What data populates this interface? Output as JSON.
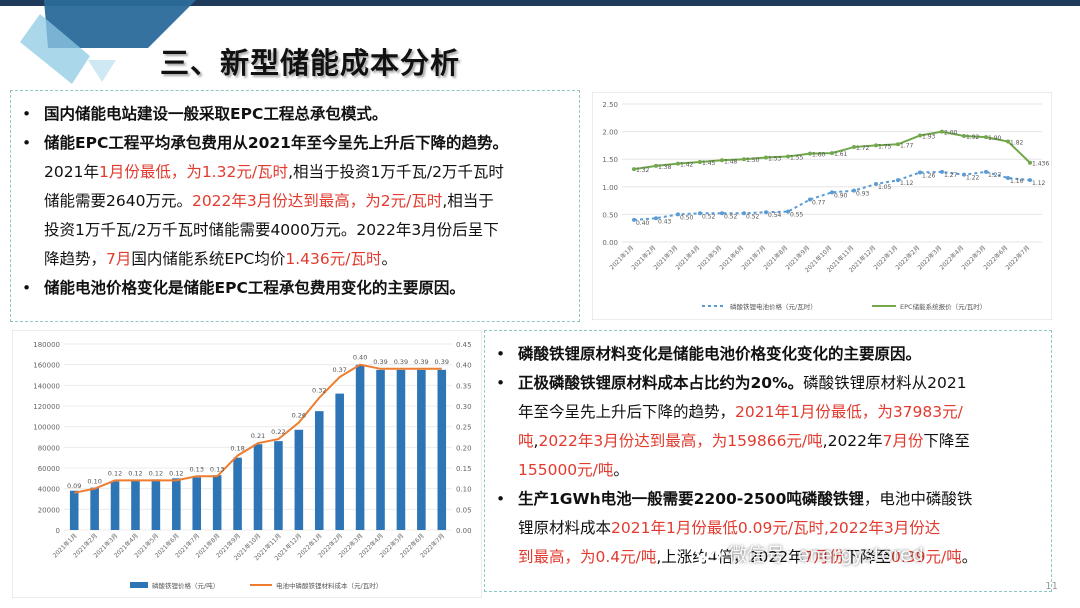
{
  "header": {
    "title": "三、新型储能成本分析"
  },
  "top_left": {
    "bullets": [
      [
        {
          "t": "国内储能电站建设一般采取EPC工程总承包模式。",
          "s": "b"
        }
      ],
      [
        {
          "t": "储能EPC工程平均承包费用从2021年至今呈先上升后下降的趋势。",
          "s": "b"
        }
      ],
      [
        {
          "t": "2021年",
          "s": ""
        },
        {
          "t": "1月份最低，为1.32元/瓦时",
          "s": "red"
        },
        {
          "t": ",相当于投资1万千瓦/2万千瓦时",
          "s": ""
        }
      ],
      [
        {
          "t": "储能需要2640万元。",
          "s": ""
        },
        {
          "t": "2022年3月份达到最高，为2元/瓦时",
          "s": "red"
        },
        {
          "t": ",相当于",
          "s": ""
        }
      ],
      [
        {
          "t": "投资1万千瓦/2万千瓦时储能需要4000万元。2022年3月份后呈下",
          "s": ""
        }
      ],
      [
        {
          "t": "降趋势，",
          "s": ""
        },
        {
          "t": "7月",
          "s": "red"
        },
        {
          "t": "国内储能系统EPC均价",
          "s": ""
        },
        {
          "t": "1.436元/瓦时",
          "s": "red"
        },
        {
          "t": "。",
          "s": ""
        }
      ],
      [
        {
          "t": "储能电池价格变化是储能EPC工程承包费用变化的主要原因。",
          "s": "b"
        }
      ]
    ],
    "bullet_lines": [
      true,
      true,
      false,
      false,
      false,
      false,
      true
    ]
  },
  "bottom_right": {
    "bullets": [
      [
        {
          "t": "磷酸铁锂原材料变化是储能电池价格变化变化的主要原因。",
          "s": "b"
        }
      ],
      [
        {
          "t": "正极磷酸铁锂原材料成本占比约为20%。",
          "s": "b"
        },
        {
          "t": "磷酸铁锂原材料从2021",
          "s": ""
        }
      ],
      [
        {
          "t": "年至今呈先上升后下降的趋势，",
          "s": ""
        },
        {
          "t": "2021年1月份最低，为37983元/",
          "s": "red"
        }
      ],
      [
        {
          "t": "吨",
          "s": "red"
        },
        {
          "t": ",",
          "s": ""
        },
        {
          "t": "2022年3月份达到最高，为159866元/吨",
          "s": "red"
        },
        {
          "t": ",2022年",
          "s": ""
        },
        {
          "t": "7月份",
          "s": "red"
        },
        {
          "t": "下降至",
          "s": ""
        }
      ],
      [
        {
          "t": "155000元/吨",
          "s": "red"
        },
        {
          "t": "。",
          "s": ""
        }
      ],
      [
        {
          "t": "生产1GWh电池一般需要2200-2500吨磷酸铁锂",
          "s": "b"
        },
        {
          "t": "，电池中磷酸铁",
          "s": ""
        }
      ],
      [
        {
          "t": "锂原材料成本",
          "s": ""
        },
        {
          "t": "2021年1月份",
          "s": "red"
        },
        {
          "t": "最低0.09元/瓦时,2022年3月份达",
          "s": "red"
        }
      ],
      [
        {
          "t": "到最高，为0.4元/吨",
          "s": "red"
        },
        {
          "t": ",上涨约4倍，2022年",
          "s": ""
        },
        {
          "t": "7月份",
          "s": "red"
        },
        {
          "t": "下降至",
          "s": ""
        },
        {
          "t": "0.39元/吨",
          "s": "red"
        },
        {
          "t": "。",
          "s": ""
        }
      ]
    ],
    "bullet_lines": [
      true,
      true,
      false,
      false,
      false,
      true,
      false,
      false
    ]
  },
  "bullet_glyph": "•",
  "watermark": "微信号: energystored",
  "page_number": "11",
  "colors": {
    "red": "#e23a2e",
    "green": "#70a84a",
    "blue_line": "#5b9bd5",
    "bar_blue": "#2e75b6",
    "orange": "#ed7d31",
    "dash_border": "#8fc7c4"
  },
  "chart_data": [
    {
      "type": "line",
      "categories": [
        "2021年1月",
        "2021年2月",
        "2021年3月",
        "2021年4月",
        "2021年5月",
        "2021年6月",
        "2021年7月",
        "2021年8月",
        "2021年9月",
        "2021年10月",
        "2021年11月",
        "2021年12月",
        "2022年1月",
        "2022年2月",
        "2022年3月",
        "2022年4月",
        "2022年5月",
        "2022年6月",
        "2022年7月"
      ],
      "series": [
        {
          "name": "磷酸铁锂电池价格（元/瓦时）",
          "color": "#5b9bd5",
          "dashed": true,
          "values": [
            0.4,
            0.43,
            0.5,
            0.52,
            0.52,
            0.52,
            0.54,
            0.55,
            0.77,
            0.9,
            0.93,
            1.05,
            1.12,
            1.26,
            1.27,
            1.22,
            1.27,
            1.16,
            1.12
          ],
          "labels": [
            "0.40",
            "0.43",
            "0.50",
            "0.52",
            "0.52",
            "0.52",
            "0.54",
            "0.55",
            "0.77",
            "0.90",
            "0.93",
            "1.05",
            "1.12",
            "1.26",
            "1.27",
            "1.22",
            "1.27",
            "1.16",
            "1.12"
          ]
        },
        {
          "name": "EPC储能系统报价（元/瓦时）",
          "color": "#70a84a",
          "dashed": false,
          "values": [
            1.32,
            1.38,
            1.42,
            1.45,
            1.48,
            1.5,
            1.53,
            1.55,
            1.6,
            1.61,
            1.72,
            1.75,
            1.77,
            1.93,
            2.0,
            1.92,
            1.9,
            1.82,
            1.436
          ],
          "labels": [
            "1.32",
            "1.38",
            "1.42",
            "1.45",
            "1.48",
            "1.50",
            "1.53",
            "1.55",
            "1.60",
            "1.61",
            "1.72",
            "1.75",
            "1.77",
            "1.93",
            "2.00",
            "1.92",
            "1.90",
            "1.82",
            "1.436"
          ]
        }
      ],
      "yticks": [
        "0.00",
        "0.50",
        "1.00",
        "1.50",
        "2.00",
        "2.50"
      ],
      "ylim": [
        0,
        2.5
      ],
      "grid": true,
      "legend": "bottom"
    },
    {
      "type": "bar",
      "categories": [
        "2021年1月",
        "2021年2月",
        "2021年3月",
        "2021年4月",
        "2021年5月",
        "2021年6月",
        "2021年7月",
        "2021年8月",
        "2021年9月",
        "2021年10月",
        "2021年11月",
        "2021年12月",
        "2022年1月",
        "2022年2月",
        "2022年3月",
        "2022年4月",
        "2022年5月",
        "2022年6月",
        "2022年7月"
      ],
      "series": [
        {
          "name": "磷酸铁锂价格（元/吨）",
          "type": "bar",
          "axis": "left",
          "color": "#2e75b6",
          "values": [
            37983,
            41000,
            47000,
            48000,
            49000,
            50000,
            51000,
            53000,
            70000,
            83000,
            86000,
            97000,
            115000,
            132000,
            159866,
            155000,
            155000,
            155000,
            155000
          ]
        },
        {
          "name": "电池中磷酸铁锂材料成本（元/瓦时）",
          "type": "line",
          "axis": "right",
          "color": "#ed7d31",
          "values": [
            0.09,
            0.1,
            0.12,
            0.12,
            0.12,
            0.12,
            0.13,
            0.13,
            0.18,
            0.21,
            0.22,
            0.26,
            0.32,
            0.37,
            0.4,
            0.39,
            0.39,
            0.39,
            0.39
          ],
          "labels": [
            "0.09",
            "0.10",
            "0.12",
            "0.12",
            "0.12",
            "0.12",
            "0.13",
            "0.13",
            "0.18",
            "0.21",
            "0.22",
            "0.26",
            "0.32",
            "0.37",
            "0.40",
            "0.39",
            "0.39",
            "0.39",
            "0.39"
          ]
        }
      ],
      "y_left_ticks": [
        "0",
        "20000",
        "40000",
        "60000",
        "80000",
        "100000",
        "120000",
        "140000",
        "160000",
        "180000"
      ],
      "y_left_lim": [
        0,
        180000
      ],
      "y_right_ticks": [
        "0.00",
        "0.05",
        "0.10",
        "0.15",
        "0.20",
        "0.25",
        "0.30",
        "0.35",
        "0.40",
        "0.45"
      ],
      "y_right_lim": [
        0,
        0.45
      ],
      "grid": true,
      "legend": "bottom"
    }
  ]
}
